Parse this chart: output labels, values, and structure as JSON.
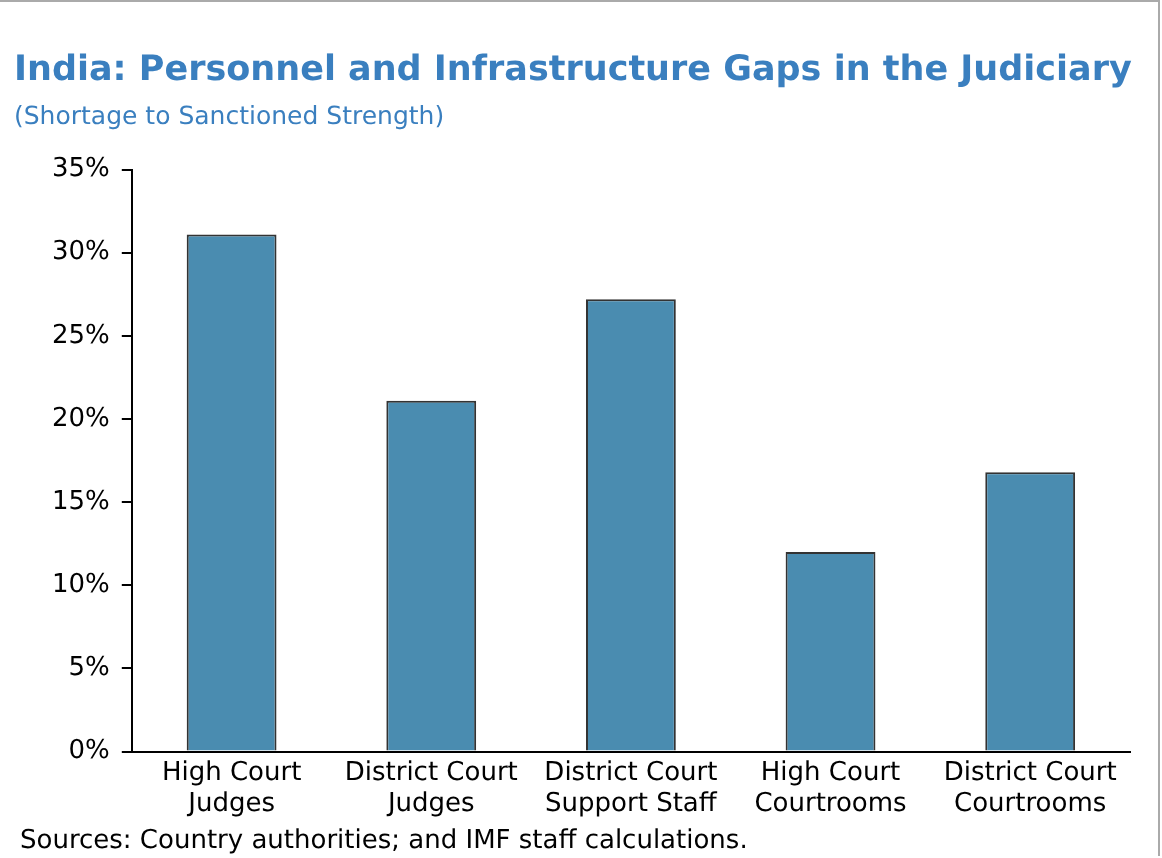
{
  "chart_data": {
    "type": "bar",
    "title": "India: Personnel and Infrastructure Gaps in the Judiciary",
    "subtitle": "(Shortage to Sanctioned Strength)",
    "categories": [
      "High Court Judges",
      "District Court Judges",
      "District Court Support Staff",
      "High Court Courtrooms",
      "District Court Courtrooms"
    ],
    "values": [
      31.1,
      21.1,
      27.2,
      12.0,
      16.8
    ],
    "color": "#4a8cb0",
    "ylim": [
      0,
      35
    ],
    "yticks": [
      {
        "value": 0,
        "label": "0%"
      },
      {
        "value": 5,
        "label": "5%"
      },
      {
        "value": 10,
        "label": "10%"
      },
      {
        "value": 15,
        "label": "15%"
      },
      {
        "value": 20,
        "label": "20%"
      },
      {
        "value": 25,
        "label": "25%"
      },
      {
        "value": 30,
        "label": "30%"
      },
      {
        "value": 35,
        "label": "35%"
      }
    ],
    "grid": false,
    "legend": false,
    "annotations": [
      "Sources: Country authorities; and IMF staff calculations."
    ]
  }
}
